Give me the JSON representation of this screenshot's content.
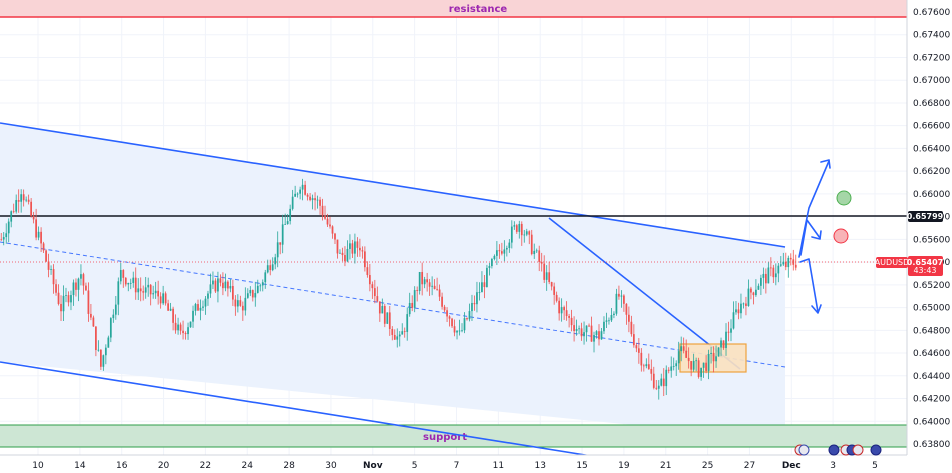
{
  "chart_data": {
    "type": "candlestick",
    "symbol": "AUDUSD",
    "last_price": "0.65407",
    "countdown": "43:43",
    "level_price": "0.65799",
    "zones": {
      "resistance": "resistance",
      "support": "support"
    },
    "ylim": [
      0.638,
      0.676
    ],
    "y_ticks": [
      "0.67600",
      "0.67400",
      "0.67200",
      "0.67000",
      "0.66800",
      "0.66600",
      "0.66400",
      "0.66200",
      "0.66000",
      "0.65800",
      "0.65600",
      "0.65400",
      "0.65200",
      "0.65000",
      "0.64800",
      "0.64600",
      "0.64400",
      "0.64200",
      "0.64000",
      "0.63800"
    ],
    "x_ticks": [
      "10",
      "14",
      "16",
      "20",
      "22",
      "24",
      "28",
      "30",
      "Nov",
      "5",
      "7",
      "11",
      "13",
      "15",
      "19",
      "21",
      "25",
      "27",
      "Dec",
      "3",
      "5"
    ],
    "x_ticks_bold": [
      "Nov",
      "Dec"
    ],
    "price_path": [
      [
        "Oct 08",
        0.656
      ],
      [
        "Oct 09",
        0.6605
      ],
      [
        "Oct 10",
        0.6555
      ],
      [
        "Oct 11",
        0.65
      ],
      [
        "Oct 14",
        0.653
      ],
      [
        "Oct 15",
        0.6448
      ],
      [
        "Oct 16",
        0.653
      ],
      [
        "Oct 17",
        0.6515
      ],
      [
        "Oct 18",
        0.651
      ],
      [
        "Oct 21",
        0.6475
      ],
      [
        "Oct 22",
        0.6505
      ],
      [
        "Oct 23",
        0.6525
      ],
      [
        "Oct 24",
        0.65
      ],
      [
        "Oct 25",
        0.652
      ],
      [
        "Oct 28",
        0.656
      ],
      [
        "Oct 29",
        0.661
      ],
      [
        "Oct 30",
        0.659
      ],
      [
        "Oct 31",
        0.6545
      ],
      [
        "Nov 01",
        0.6555
      ],
      [
        "Nov 04",
        0.65
      ],
      [
        "Nov 05",
        0.647
      ],
      [
        "Nov 06",
        0.6525
      ],
      [
        "Nov 07",
        0.651
      ],
      [
        "Nov 08",
        0.6475
      ],
      [
        "Nov 11",
        0.6515
      ],
      [
        "Nov 12",
        0.655
      ],
      [
        "Nov 13",
        0.6575
      ],
      [
        "Nov 14",
        0.654
      ],
      [
        "Nov 15",
        0.65
      ],
      [
        "Nov 18",
        0.648
      ],
      [
        "Nov 19",
        0.6475
      ],
      [
        "Nov 20",
        0.651
      ],
      [
        "Nov 21",
        0.646
      ],
      [
        "Nov 22",
        0.6428
      ],
      [
        "Nov 25",
        0.6462
      ],
      [
        "Nov 26",
        0.6445
      ],
      [
        "Nov 27",
        0.646
      ],
      [
        "Nov 28",
        0.65
      ],
      [
        "Nov 29",
        0.6522
      ],
      [
        "Dec 02",
        0.6535
      ],
      [
        "Dec 03",
        0.6541
      ]
    ],
    "grid": true
  },
  "colors": {
    "channel_line": "#2962ff",
    "channel_fill": "#eaf1fd",
    "resistance_fill": "#f9d4d6",
    "resistance_line": "#f23645",
    "support_fill": "#cde6d4",
    "support_line": "#2e9e4a",
    "up_candle": "#26a69a",
    "down_candle": "#ef5350",
    "consolidation_fill": "#fbe2c0",
    "consolidation_border": "#ef9a2a",
    "zone_label": "#9c27b0",
    "price_tag": "#f23645",
    "level_tag": "#131722",
    "target_green": "#4caf50",
    "target_red": "#f23645"
  }
}
